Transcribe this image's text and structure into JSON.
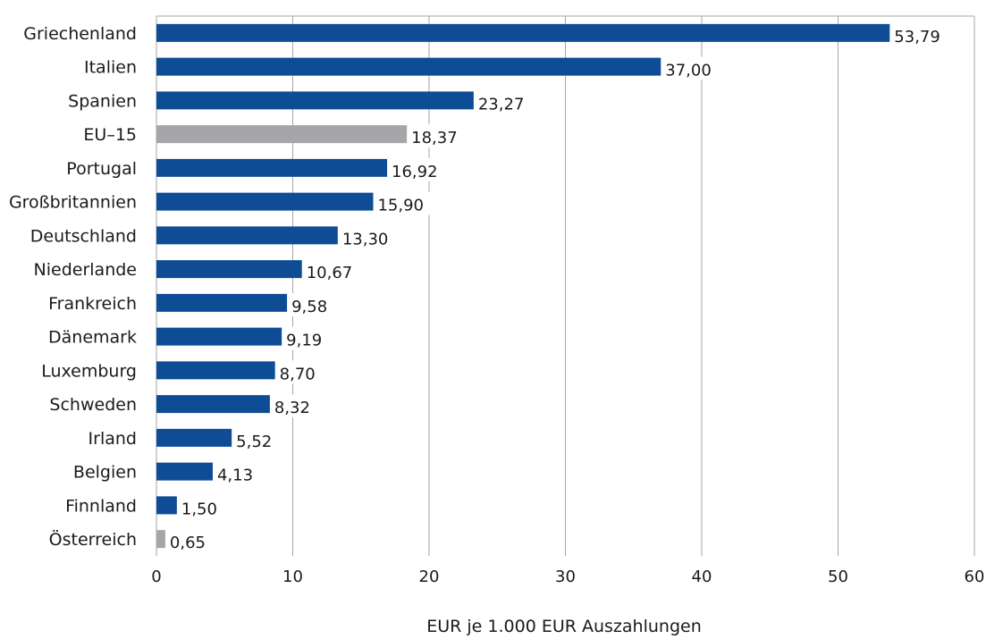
{
  "chart_data": {
    "type": "bar",
    "orientation": "horizontal",
    "categories": [
      "Griechenland",
      "Italien",
      "Spanien",
      "EU–15",
      "Portugal",
      "Großbritannien",
      "Deutschland",
      "Niederlande",
      "Frankreich",
      "Dänemark",
      "Luxemburg",
      "Schweden",
      "Irland",
      "Belgien",
      "Finnland",
      "Österreich"
    ],
    "values": [
      53.79,
      37.0,
      23.27,
      18.37,
      16.92,
      15.9,
      13.3,
      10.67,
      9.58,
      9.19,
      8.7,
      8.32,
      5.52,
      4.13,
      1.5,
      0.65
    ],
    "value_labels": [
      "53,79",
      "37,00",
      "23,27",
      "18,37",
      "16,92",
      "15,90",
      "13,30",
      "10,67",
      "9,58",
      "9,19",
      "8,70",
      "8,32",
      "5,52",
      "4,13",
      "1,50",
      "0,65"
    ],
    "highlighted": [
      "EU–15",
      "Österreich"
    ],
    "xlabel": "EUR je 1.000 EUR Auszahlungen",
    "xlim": [
      0,
      60
    ],
    "xticks": [
      "0",
      "10",
      "20",
      "30",
      "40",
      "50",
      "60"
    ],
    "grid": "vertical",
    "colors": {
      "bar": "#0e4d96",
      "highlight": "#a6a6a9",
      "grid": "#a6a6a6"
    }
  }
}
